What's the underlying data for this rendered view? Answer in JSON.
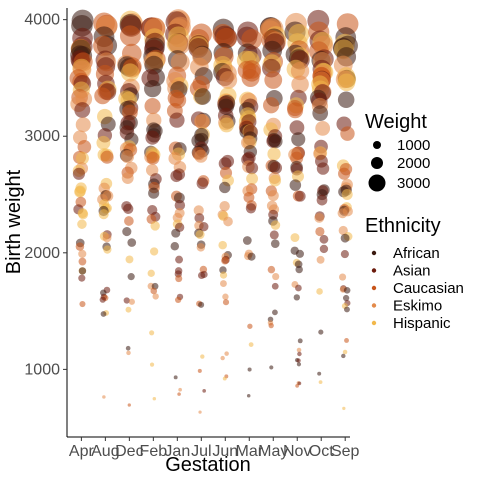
{
  "chart_data": {
    "type": "scatter",
    "xlabel": "Gestation",
    "ylabel": "Birth weight",
    "categories": [
      "Apr",
      "Aug",
      "Dec",
      "Feb",
      "Jan",
      "Jul",
      "Jun",
      "Mar",
      "May",
      "Nov",
      "Oct",
      "Sep"
    ],
    "ylim": [
      420,
      4100
    ],
    "yticks": [
      1000,
      2000,
      3000,
      4000
    ],
    "ytick_labels": [
      "1000",
      "2000",
      "3000",
      "4000"
    ],
    "grid": false,
    "legend_position": "right",
    "size_legend": {
      "title": "Weight",
      "values": [
        1000,
        2000,
        3000
      ],
      "labels": [
        "1000",
        "2000",
        "3000"
      ]
    },
    "color_legend": {
      "title": "Ethnicity",
      "groups": [
        "African",
        "Asian",
        "Caucasian",
        "Eskimo",
        "Hispanic"
      ],
      "colors": [
        "#3a1a10",
        "#6b1a0c",
        "#c8551a",
        "#e38a4a",
        "#f2b84b"
      ]
    },
    "series_range": {
      "min": 520,
      "max": 4000,
      "points_per_month": 46
    }
  }
}
